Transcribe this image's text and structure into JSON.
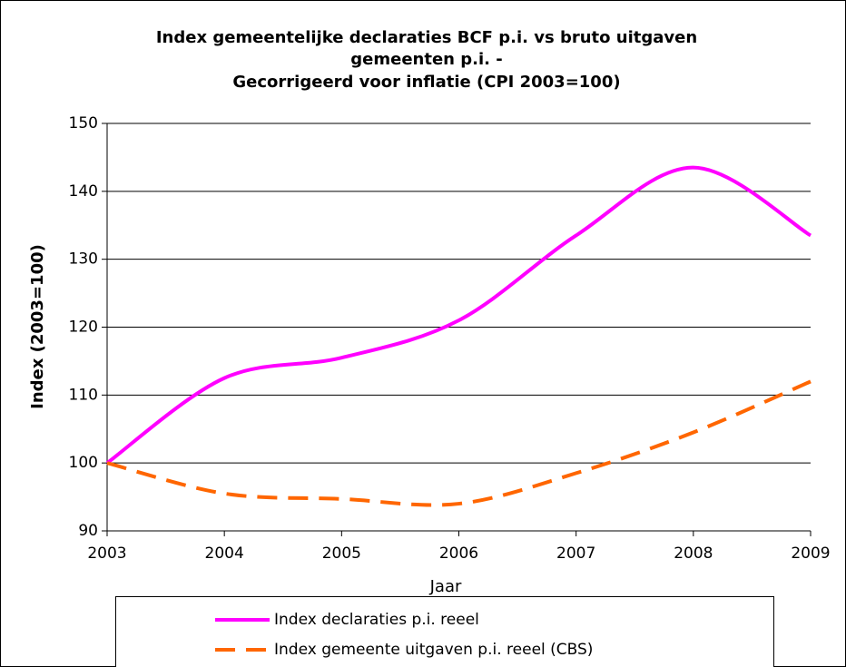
{
  "chart_data": {
    "type": "line",
    "title": [
      "Index gemeentelijke declaraties BCF p.i. vs bruto uitgaven",
      "gemeenten p.i.  -",
      "Gecorrigeerd voor inflatie (CPI 2003=100)"
    ],
    "x_label": "Jaar",
    "y_label": "Index (2003=100)",
    "x": [
      2003,
      2004,
      2005,
      2006,
      2007,
      2008,
      2009
    ],
    "series": [
      {
        "name": "Index declaraties p.i. reeel",
        "color": "#ff00ff",
        "line_style": "solid",
        "values": [
          100,
          112.5,
          115.5,
          121,
          133.5,
          143.5,
          133.5
        ]
      },
      {
        "name": "Index gemeente uitgaven p.i. reeel (CBS)",
        "color": "#ff6600",
        "line_style": "dashed",
        "values": [
          100,
          95.5,
          94.7,
          94,
          98.5,
          104.5,
          112
        ]
      }
    ],
    "xlim": [
      2003,
      2009
    ],
    "xticks": [
      2003,
      2004,
      2005,
      2006,
      2007,
      2008,
      2009
    ],
    "ylim": [
      90,
      150
    ],
    "yticks": [
      90,
      100,
      110,
      120,
      130,
      140,
      150
    ],
    "grid": true,
    "legend": "bottom"
  }
}
